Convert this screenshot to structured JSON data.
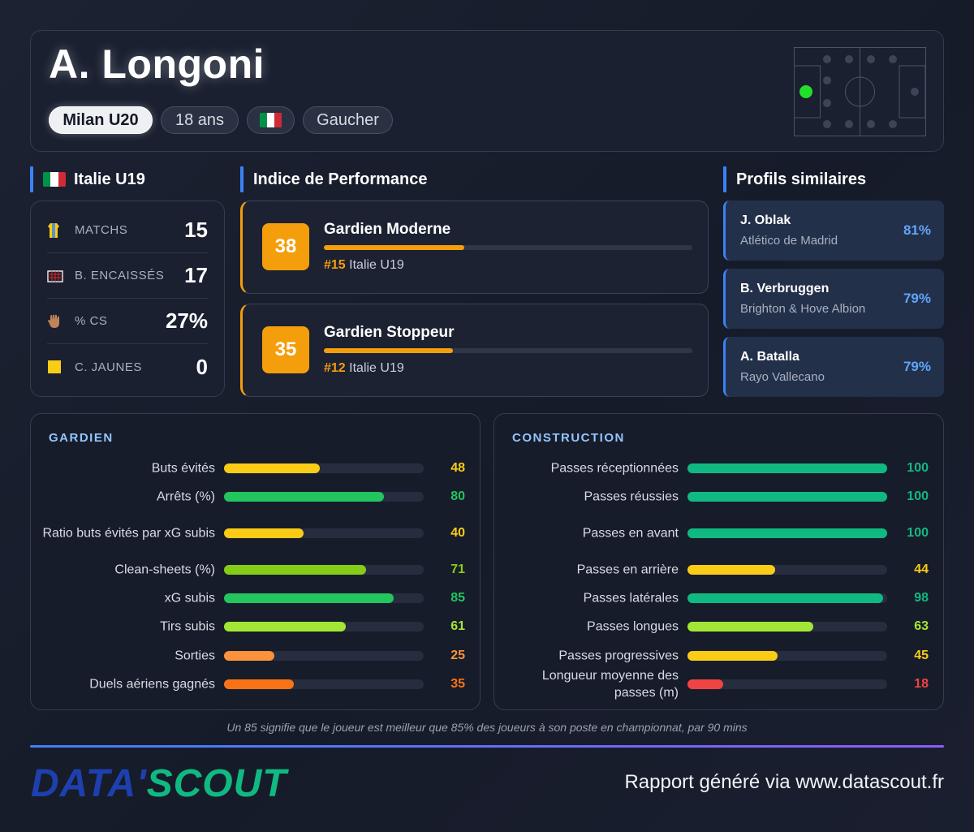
{
  "header": {
    "player_name": "A. Longoni",
    "club": "Milan U20",
    "age": "18 ans",
    "flag_icon": "italy-flag-icon",
    "flag_colors": [
      "#009246",
      "#ffffff",
      "#ce2b37"
    ],
    "foot": "Gaucher"
  },
  "national": {
    "title": "Italie U19",
    "stats": [
      {
        "icon": "jersey-icon",
        "label": "MATCHS",
        "value": "15"
      },
      {
        "icon": "goal-net-icon",
        "label": "B. ENCAISSÉS",
        "value": "17"
      },
      {
        "icon": "glove-icon",
        "label": "% CS",
        "value": "27%"
      },
      {
        "icon": "yellow-card-icon",
        "label": "C. JAUNES",
        "value": "0"
      }
    ]
  },
  "performance": {
    "title": "Indice de Performance",
    "items": [
      {
        "score": "38",
        "name": "Gardien Moderne",
        "percent": 38,
        "rank": "#15",
        "league": "Italie U19"
      },
      {
        "score": "35",
        "name": "Gardien Stoppeur",
        "percent": 35,
        "rank": "#12",
        "league": "Italie U19"
      }
    ]
  },
  "similar": {
    "title": "Profils similaires",
    "items": [
      {
        "name": "J. Oblak",
        "club": "Atlético de Madrid",
        "pct": "81%"
      },
      {
        "name": "B. Verbruggen",
        "club": "Brighton & Hove Albion",
        "pct": "79%"
      },
      {
        "name": "A. Batalla",
        "club": "Rayo Vallecano",
        "pct": "79%"
      }
    ]
  },
  "goalkeeper": {
    "title": "GARDIEN",
    "metrics": [
      {
        "label": "Buts évités",
        "value": 48,
        "color": "#facc15"
      },
      {
        "label": "Arrêts (%)",
        "value": 80,
        "color": "#22c55e"
      },
      {
        "label": "Ratio buts évités par xG subis",
        "value": 40,
        "color": "#facc15"
      },
      {
        "label": "Clean-sheets (%)",
        "value": 71,
        "color": "#84cc16"
      },
      {
        "label": "xG subis",
        "value": 85,
        "color": "#22c55e"
      },
      {
        "label": "Tirs subis",
        "value": 61,
        "color": "#a3e635"
      },
      {
        "label": "Sorties",
        "value": 25,
        "color": "#fb923c"
      },
      {
        "label": "Duels aériens gagnés",
        "value": 35,
        "color": "#f97316"
      }
    ]
  },
  "construction": {
    "title": "CONSTRUCTION",
    "metrics": [
      {
        "label": "Passes réceptionnées",
        "value": 100,
        "color": "#10b981"
      },
      {
        "label": "Passes réussies",
        "value": 100,
        "color": "#10b981"
      },
      {
        "label": "Passes en avant",
        "value": 100,
        "color": "#10b981"
      },
      {
        "label": "Passes en arrière",
        "value": 44,
        "color": "#facc15"
      },
      {
        "label": "Passes latérales",
        "value": 98,
        "color": "#10b981"
      },
      {
        "label": "Passes longues",
        "value": 63,
        "color": "#a3e635"
      },
      {
        "label": "Passes progressives",
        "value": 45,
        "color": "#facc15"
      },
      {
        "label": "Longueur moyenne des passes (m)",
        "value": 18,
        "color": "#ef4444"
      }
    ]
  },
  "footer": {
    "note": "Un 85 signifie que le joueur est meilleur que 85% des joueurs à son poste en championnat, par 90 mins",
    "logo_part1": "DATA'",
    "logo_part2": "SCOUT",
    "text": "Rapport généré via www.datascout.fr"
  }
}
